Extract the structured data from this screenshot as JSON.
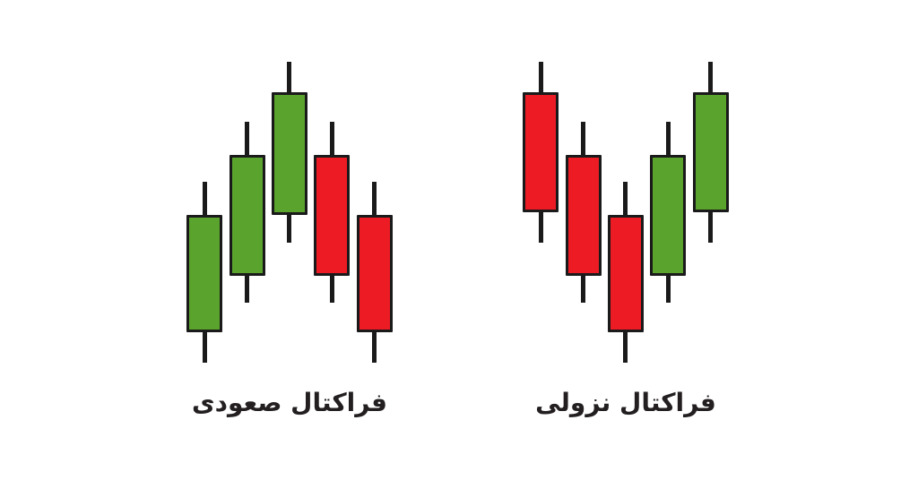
{
  "page": {
    "background": "#ffffff"
  },
  "colors": {
    "bullish_body": "#5aa42e",
    "bearish_body": "#ed1c24",
    "outline": "#1a1a1a",
    "wick": "#1a1a1a",
    "label_text": "#231f20"
  },
  "chart_data": [
    {
      "type": "candlestick",
      "title": "فراکتال صعودی",
      "pattern": "up-fractal-peak",
      "ylim": [
        0,
        100
      ],
      "grid": false,
      "candles": [
        {
          "open": 10,
          "high": 60,
          "low": 0,
          "close": 49,
          "direction": "bullish"
        },
        {
          "open": 29,
          "high": 80,
          "low": 20,
          "close": 69,
          "direction": "bullish"
        },
        {
          "open": 49,
          "high": 100,
          "low": 40,
          "close": 90,
          "direction": "bullish"
        },
        {
          "open": 69,
          "high": 80,
          "low": 20,
          "close": 29,
          "direction": "bearish"
        },
        {
          "open": 49,
          "high": 60,
          "low": 0,
          "close": 10,
          "direction": "bearish"
        }
      ]
    },
    {
      "type": "candlestick",
      "title": "فراکتال نزولی",
      "pattern": "down-fractal-trough",
      "ylim": [
        0,
        100
      ],
      "grid": false,
      "candles": [
        {
          "open": 90,
          "high": 100,
          "low": 40,
          "close": 50,
          "direction": "bearish"
        },
        {
          "open": 69,
          "high": 80,
          "low": 20,
          "close": 29,
          "direction": "bearish"
        },
        {
          "open": 49,
          "high": 60,
          "low": 0,
          "close": 10,
          "direction": "bearish"
        },
        {
          "open": 29,
          "high": 80,
          "low": 20,
          "close": 69,
          "direction": "bullish"
        },
        {
          "open": 50,
          "high": 100,
          "low": 40,
          "close": 90,
          "direction": "bullish"
        }
      ]
    }
  ]
}
